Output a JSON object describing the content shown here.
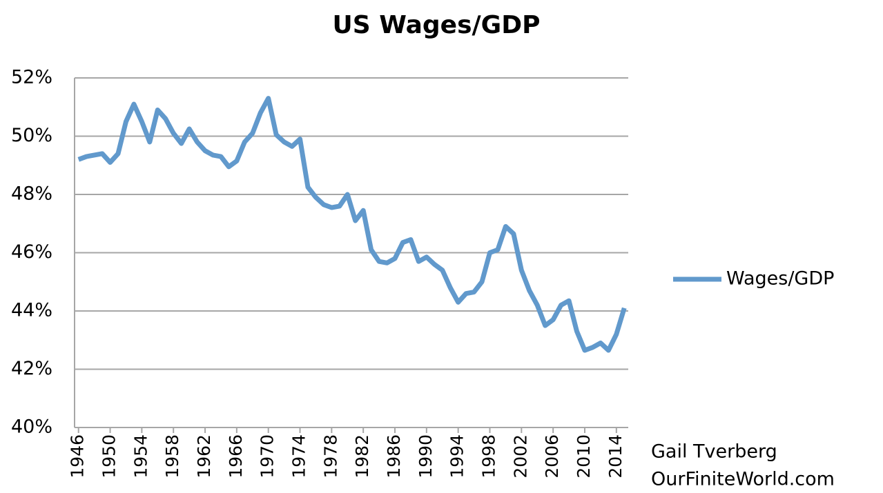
{
  "chart_data": {
    "type": "line",
    "title": "US Wages/GDP",
    "annotations": [
      "Gail Tverberg",
      "OurFiniteWorld.com"
    ],
    "x": [
      1946,
      1947,
      1948,
      1949,
      1950,
      1951,
      1952,
      1953,
      1954,
      1955,
      1956,
      1957,
      1958,
      1959,
      1960,
      1961,
      1962,
      1963,
      1964,
      1965,
      1966,
      1967,
      1968,
      1969,
      1970,
      1971,
      1972,
      1973,
      1974,
      1975,
      1976,
      1977,
      1978,
      1979,
      1980,
      1981,
      1982,
      1983,
      1984,
      1985,
      1986,
      1987,
      1988,
      1989,
      1990,
      1991,
      1992,
      1993,
      1994,
      1995,
      1996,
      1997,
      1998,
      1999,
      2000,
      2001,
      2002,
      2003,
      2004,
      2005,
      2006,
      2007,
      2008,
      2009,
      2010,
      2011,
      2012,
      2013,
      2014,
      2015
    ],
    "series": [
      {
        "name": "Wages/GDP",
        "color": "#6199cc",
        "values": [
          49.2,
          49.3,
          49.35,
          49.4,
          49.1,
          49.4,
          50.5,
          51.1,
          50.5,
          49.8,
          50.9,
          50.6,
          50.1,
          49.75,
          50.25,
          49.8,
          49.5,
          49.35,
          49.3,
          48.95,
          49.15,
          49.8,
          50.1,
          50.8,
          51.3,
          50.05,
          49.8,
          49.65,
          49.9,
          48.25,
          47.9,
          47.65,
          47.55,
          47.6,
          48.0,
          47.1,
          47.45,
          46.1,
          45.7,
          45.65,
          45.8,
          46.35,
          46.45,
          45.7,
          45.85,
          45.6,
          45.4,
          44.8,
          44.3,
          44.6,
          44.65,
          45.0,
          46.0,
          46.1,
          46.9,
          46.65,
          45.4,
          44.7,
          44.2,
          43.5,
          43.7,
          44.2,
          44.35,
          43.3,
          42.65,
          42.75,
          42.9,
          42.65,
          43.2,
          44.1
        ]
      }
    ],
    "xlim": [
      1945.5,
      2015.5
    ],
    "xticks": [
      1946,
      1950,
      1954,
      1958,
      1962,
      1966,
      1970,
      1974,
      1978,
      1982,
      1986,
      1990,
      1994,
      1998,
      2002,
      2006,
      2010,
      2014
    ],
    "ylim": [
      40,
      52
    ],
    "yticks": [
      {
        "value": 40,
        "label": "40%"
      },
      {
        "value": 42,
        "label": "42%"
      },
      {
        "value": 44,
        "label": "44%"
      },
      {
        "value": 46,
        "label": "46%"
      },
      {
        "value": 48,
        "label": "48%"
      },
      {
        "value": 50,
        "label": "50%"
      },
      {
        "value": 52,
        "label": "52%"
      }
    ],
    "grid": true,
    "legend": "right"
  }
}
